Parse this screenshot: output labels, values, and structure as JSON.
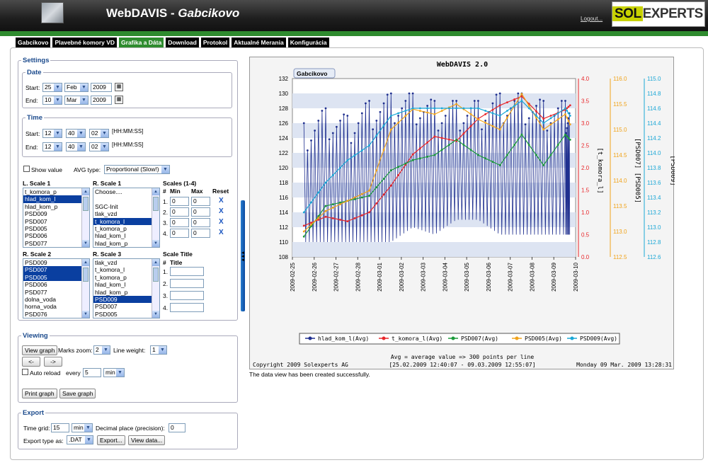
{
  "header": {
    "title_main": "WebDAVIS",
    "title_sep": " - ",
    "title_site": "Gabcikovo",
    "logout": "Logout...",
    "logo_a": "SOL",
    "logo_b": "EXPERTS"
  },
  "tabs": [
    {
      "label": "Gabcikovo",
      "active": false
    },
    {
      "label": "Plavebné komory VD",
      "active": false
    },
    {
      "label": "Grafika a Dáta",
      "active": true
    },
    {
      "label": "Download",
      "active": false
    },
    {
      "label": "Protokol",
      "active": false
    },
    {
      "label": "Aktualné Merania",
      "active": false
    },
    {
      "label": "Konfigurácia",
      "active": false
    }
  ],
  "settings": {
    "legend": "Settings",
    "date": {
      "legend": "Date",
      "start_label": "Start:",
      "start_day": "25",
      "start_month": "Feb",
      "start_year": "2009",
      "end_label": "End:",
      "end_day": "10",
      "end_month": "Mar",
      "end_year": "2009"
    },
    "time": {
      "legend": "Time",
      "start_label": "Start:",
      "start_h": "12",
      "start_m": "40",
      "start_s": "02",
      "end_label": "End:",
      "end_h": "12",
      "end_m": "40",
      "end_s": "02",
      "format": "[HH:MM:SS]"
    },
    "show_value": "Show value",
    "avg_type_label": "AVG type:",
    "avg_type": "Proportional (Slow!)",
    "l_scale1": {
      "title": "L. Scale 1",
      "items": [
        "t_komora_p",
        "hlad_kom_l",
        "hlad_kom_p",
        "PSD009",
        "PSD007",
        "PSD005",
        "PSD006",
        "PSD077"
      ],
      "selected": [
        1
      ]
    },
    "r_scale1": {
      "title": "R. Scale 1",
      "items": [
        "Choose....",
        "",
        "SGC-Init",
        "tlak_vzd",
        "t_komora_l",
        "t_komora_p",
        "hlad_kom_l",
        "hlad_kom_p"
      ],
      "selected": [
        4
      ]
    },
    "scales": {
      "title": "Scales (1-4)",
      "hdr_num": "#",
      "hdr_min": "Min",
      "hdr_max": "Max",
      "hdr_reset": "Reset",
      "rows": [
        {
          "num": "1.",
          "min": "0",
          "max": "0",
          "reset": "X"
        },
        {
          "num": "2.",
          "min": "0",
          "max": "0",
          "reset": "X"
        },
        {
          "num": "3.",
          "min": "0",
          "max": "0",
          "reset": "X"
        },
        {
          "num": "4.",
          "min": "0",
          "max": "0",
          "reset": "X"
        }
      ]
    },
    "r_scale2": {
      "title": "R. Scale 2",
      "items": [
        "PSD009",
        "PSD007",
        "PSD005",
        "PSD006",
        "PSD077",
        "dolna_voda",
        "horna_voda",
        "PSD076"
      ],
      "selected": [
        1,
        2
      ]
    },
    "r_scale3": {
      "title": "R. Scale 3",
      "items": [
        "tlak_vzd",
        "t_komora_l",
        "t_komora_p",
        "hlad_kom_l",
        "hlad_kom_p",
        "PSD009",
        "PSD007",
        "PSD005"
      ],
      "selected": [
        5
      ]
    },
    "scale_title": {
      "title": "Scale Title",
      "hdr_num": "#",
      "hdr_title": "Title",
      "rows": [
        {
          "num": "1."
        },
        {
          "num": "2."
        },
        {
          "num": "3."
        },
        {
          "num": "4."
        }
      ]
    }
  },
  "viewing": {
    "legend": "Viewing",
    "view_graph": "View graph",
    "marks_zoom_label": "Marks zoom:",
    "marks_zoom": "2",
    "line_weight_label": "Line weight:",
    "line_weight": "1",
    "prev": "<-",
    "next": "->",
    "auto_reload": "Auto reload",
    "every_label": "every",
    "every_value": "5",
    "every_unit": "min",
    "print_graph": "Print graph",
    "save_graph": "Save graph"
  },
  "export": {
    "legend": "Export",
    "time_grid_label": "Time grid:",
    "time_grid": "15",
    "time_grid_unit": "min",
    "decimal_label": "Decimal place (precision):",
    "decimal": "0",
    "export_type_label": "Export type as:",
    "export_type": ".DAT",
    "export_btn": "Export...",
    "view_data_btn": "View data..."
  },
  "status_message": "The data view has been created successfully.",
  "colors": {
    "header_bg": "#1e1e1e",
    "green": "#2e8b2e",
    "logo_accent": "#c8d200",
    "series_blue": "#1f2f8f",
    "series_red": "#e8262a",
    "series_green": "#1b9a3a",
    "series_orange": "#f0a31a",
    "series_cyan": "#1aa7d6"
  },
  "chart_data": {
    "type": "line",
    "title": "WebDAVIS 2.0",
    "panel_label": "Gabcikovo",
    "x_ticks": [
      "2009-02-25",
      "2009-02-26",
      "2009-02-27",
      "2009-02-28",
      "2009-03-01",
      "2009-03-02",
      "2009-03-03",
      "2009-03-04",
      "2009-03-05",
      "2009-03-06",
      "2009-03-07",
      "2009-03-08",
      "2009-03-09",
      "2009-03-10"
    ],
    "xlim": [
      "2009-02-25",
      "2009-03-10"
    ],
    "axes": {
      "left": {
        "ylim": [
          108,
          132
        ],
        "ticks": [
          "108",
          "110",
          "112",
          "114",
          "116",
          "118",
          "120",
          "122",
          "124",
          "126",
          "128",
          "130",
          "132"
        ]
      },
      "right1": {
        "label": "[t_komora_l]",
        "ylim": [
          0.0,
          4.0
        ],
        "ticks": [
          "0.0",
          "0.5",
          "1.0",
          "1.5",
          "2.0",
          "2.5",
          "3.0",
          "3.5",
          "4.0"
        ]
      },
      "right2": {
        "label": "[PSD007] [PSD005]",
        "ylim": [
          112.5,
          116.0
        ],
        "ticks": [
          "112.5",
          "113.0",
          "113.5",
          "114.0",
          "114.5",
          "115.0",
          "115.5",
          "116.0"
        ]
      },
      "right3": {
        "label": "[PSD009]",
        "ylim": [
          112.6,
          115.0
        ],
        "ticks": [
          "112.6",
          "112.8",
          "113.0",
          "113.2",
          "113.4",
          "113.6",
          "113.8",
          "114.0",
          "114.2",
          "114.4",
          "114.6",
          "114.8",
          "115.0"
        ]
      }
    },
    "series": [
      {
        "name": "hlad_kom_l(Avg)",
        "axis": "left",
        "marker": "square",
        "x": [
          "2009-02-25",
          "2009-02-26",
          "2009-02-27",
          "2009-02-28",
          "2009-03-01",
          "2009-03-02",
          "2009-03-03",
          "2009-03-04",
          "2009-03-05",
          "2009-03-06",
          "2009-03-07",
          "2009-03-08",
          "2009-03-09",
          "2009-03-09T18:00"
        ],
        "min": [
          110,
          110,
          110,
          110,
          110,
          112,
          111,
          113,
          113,
          111,
          111,
          111,
          111,
          111
        ],
        "max": [
          126,
          128,
          127,
          129,
          130,
          130,
          129,
          129,
          129,
          130,
          130,
          129,
          129,
          127
        ]
      },
      {
        "name": "t_komora_l(Avg)",
        "axis": "right1",
        "marker": "triangle",
        "x": [
          "2009-02-25",
          "2009-02-26",
          "2009-02-27",
          "2009-02-28",
          "2009-03-01",
          "2009-03-02",
          "2009-03-03",
          "2009-03-04",
          "2009-03-05",
          "2009-03-06",
          "2009-03-07",
          "2009-03-08",
          "2009-03-09",
          "2009-03-09T18:00"
        ],
        "values": [
          0.7,
          0.9,
          0.8,
          1.0,
          1.6,
          2.3,
          2.7,
          2.6,
          3.1,
          3.4,
          3.6,
          3.1,
          3.3,
          3.4
        ]
      },
      {
        "name": "PSD007(Avg)",
        "axis": "right2",
        "marker": "circle",
        "x": [
          "2009-02-25",
          "2009-02-26",
          "2009-02-27",
          "2009-02-28",
          "2009-03-01",
          "2009-03-02",
          "2009-03-03",
          "2009-03-04",
          "2009-03-05",
          "2009-03-06",
          "2009-03-07",
          "2009-03-08",
          "2009-03-09",
          "2009-03-09T18:00"
        ],
        "values": [
          112.9,
          113.5,
          113.6,
          113.7,
          114.2,
          114.4,
          114.5,
          114.8,
          114.5,
          114.3,
          114.9,
          114.3,
          114.9,
          114.8
        ]
      },
      {
        "name": "PSD005(Avg)",
        "axis": "right2",
        "marker": "diamond",
        "x": [
          "2009-02-25",
          "2009-02-26",
          "2009-02-27",
          "2009-02-28",
          "2009-03-01",
          "2009-03-02",
          "2009-03-03",
          "2009-03-04",
          "2009-03-05",
          "2009-03-06",
          "2009-03-07",
          "2009-03-08",
          "2009-03-09",
          "2009-03-09T18:00"
        ],
        "values": [
          113.0,
          113.4,
          113.6,
          113.8,
          115.0,
          115.4,
          115.3,
          115.5,
          115.2,
          115.0,
          115.7,
          115.0,
          115.3,
          115.1
        ]
      },
      {
        "name": "PSD009(Avg)",
        "axis": "right3",
        "marker": "star",
        "x": [
          "2009-02-25",
          "2009-02-26",
          "2009-02-27",
          "2009-02-28",
          "2009-03-01",
          "2009-03-02",
          "2009-03-03",
          "2009-03-04",
          "2009-03-05",
          "2009-03-06",
          "2009-03-07",
          "2009-03-08",
          "2009-03-09",
          "2009-03-09T18:00"
        ],
        "values": [
          113.2,
          113.6,
          113.9,
          114.1,
          114.5,
          114.6,
          114.6,
          114.6,
          114.6,
          114.5,
          114.7,
          114.4,
          114.6,
          114.5
        ]
      }
    ],
    "note": "Avg = average value => 300 points per line",
    "range": "[25.02.2009 12:40:07 - 09.03.2009 12:55:07]",
    "copyright": "Copyright 2009 Solexperts AG",
    "timestamp": "Monday 09 Mar. 2009 13:28:31",
    "legend_position": "bottom",
    "grid": "horizontal bands"
  }
}
